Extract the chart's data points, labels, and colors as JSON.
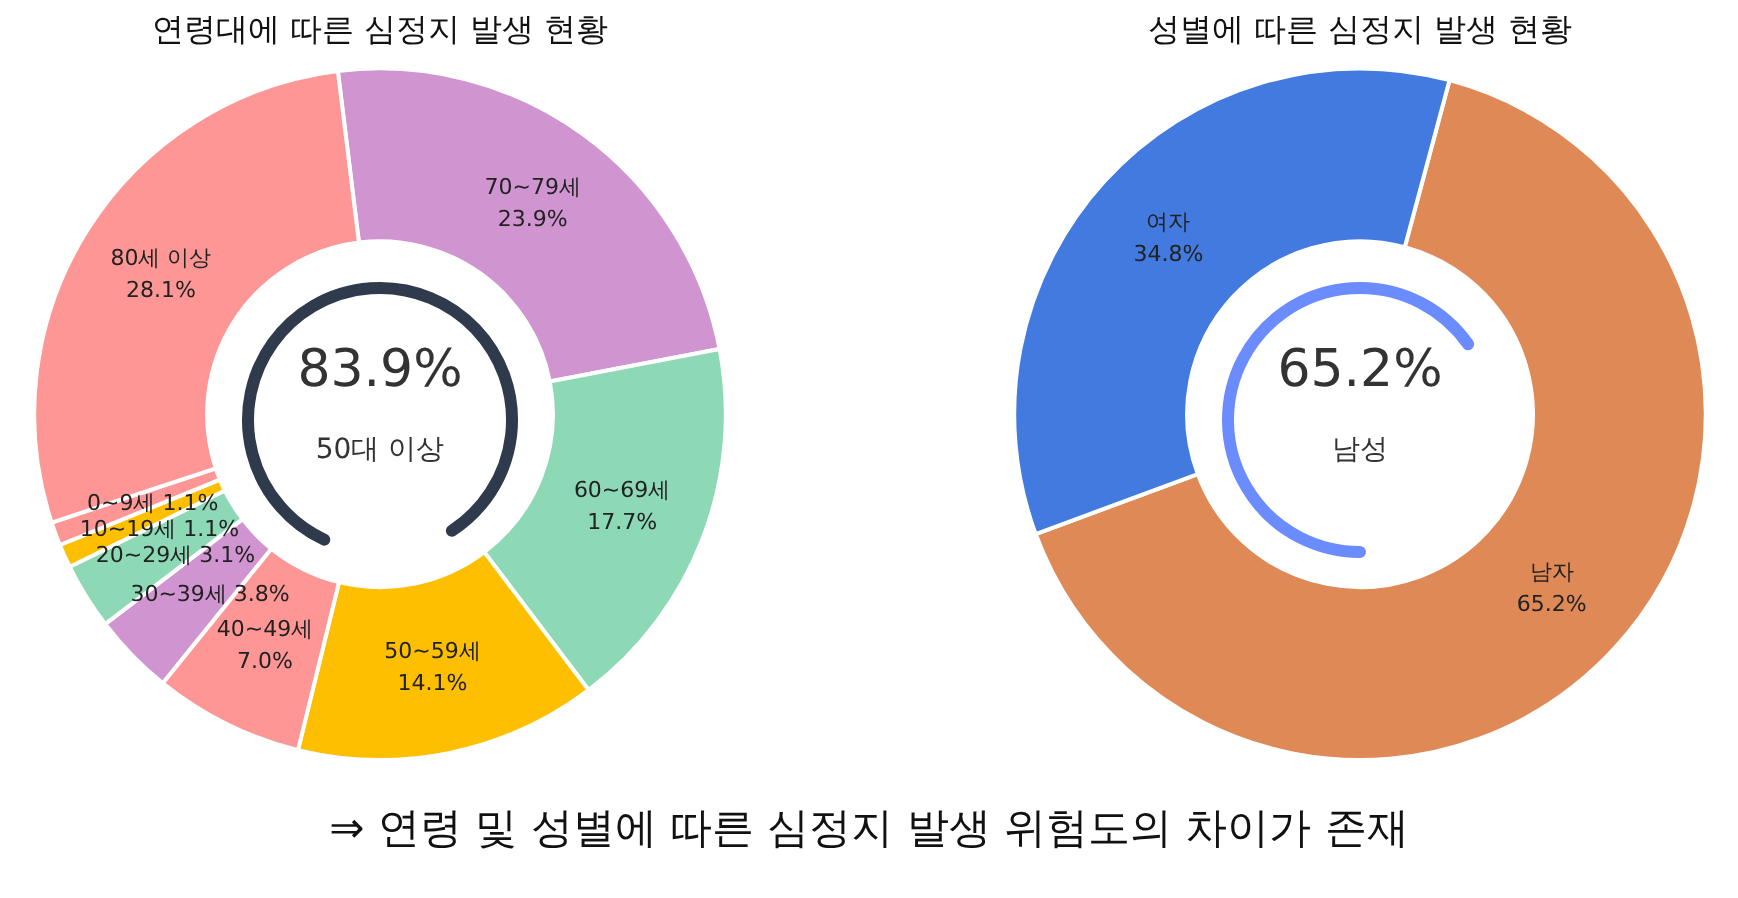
{
  "chart_data": [
    {
      "type": "donut",
      "title": "연령대에 따른 심정지 발생 현황",
      "categories": [
        "70~79세",
        "60~69세",
        "50~59세",
        "40~49세",
        "30~39세",
        "20~29세",
        "10~19세",
        "0~9세",
        "80세 이상"
      ],
      "values": [
        23.9,
        17.7,
        14.1,
        7.0,
        3.8,
        3.1,
        1.1,
        1.1,
        28.1
      ],
      "value_labels": [
        "23.9%",
        "17.7%",
        "14.1%",
        "7.0%",
        "3.8%",
        "3.1%",
        "1.1%",
        "1.1%",
        "28.1%"
      ],
      "colors": [
        "#d095d0",
        "#8dd8b5",
        "#fdbf00",
        "#fe9696",
        "#d095d0",
        "#8dd8b5",
        "#fdbf00",
        "#fe9696",
        "#fe9696"
      ],
      "legend": false,
      "annotations": [
        "83.9%",
        "50대 이상"
      ]
    },
    {
      "type": "donut",
      "title": "성별에 따른 심정지 발생 현황",
      "categories": [
        "남자",
        "여자"
      ],
      "values": [
        65.2,
        34.8
      ],
      "value_labels": [
        "65.2%",
        "34.8%"
      ],
      "colors": [
        "#df8957",
        "#437adf"
      ],
      "legend": false,
      "annotations": [
        "65.2%",
        "남성",
        "⇒ 연령 및 성별에 따른 심정지 발생 위험도의 차이가 존재"
      ]
    }
  ]
}
